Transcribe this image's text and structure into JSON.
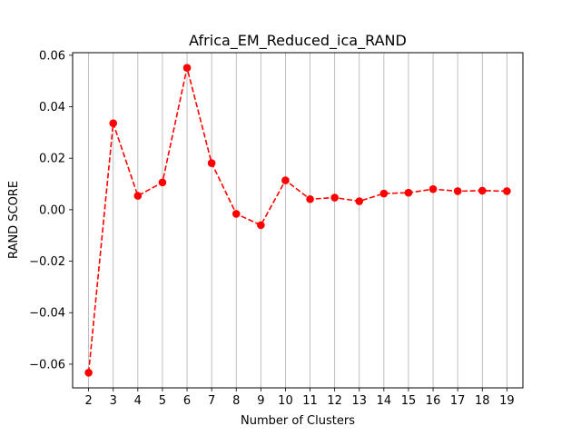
{
  "chart_data": {
    "type": "line",
    "title": "Africa_EM_Reduced_ica_RAND",
    "xlabel": "Number of Clusters",
    "ylabel": "RAND SCORE",
    "x": [
      2,
      3,
      4,
      5,
      6,
      7,
      8,
      9,
      10,
      11,
      12,
      13,
      14,
      15,
      16,
      17,
      18,
      19
    ],
    "series": [
      {
        "values": [
          -0.0633,
          0.0336,
          0.0054,
          0.0106,
          0.0551,
          0.0181,
          -0.0016,
          -0.006,
          0.0114,
          0.0041,
          0.0047,
          0.0033,
          0.0063,
          0.0066,
          0.008,
          0.0072,
          0.0074,
          0.0072
        ],
        "color": "#ff0000",
        "line_style": "dashed",
        "marker": "circle"
      }
    ],
    "xlim": [
      1.35,
      19.65
    ],
    "ylim": [
      -0.0692,
      0.061
    ],
    "xticks": [
      "2",
      "3",
      "4",
      "5",
      "6",
      "7",
      "8",
      "9",
      "10",
      "11",
      "12",
      "13",
      "14",
      "15",
      "16",
      "17",
      "18",
      "19"
    ],
    "yticks": [
      "0.06",
      "0.04",
      "0.02",
      "0.00",
      "−0.02",
      "−0.04",
      "−0.06"
    ],
    "ytick_values": [
      0.06,
      0.04,
      0.02,
      0.0,
      -0.02,
      -0.04,
      -0.06
    ],
    "grid": "x-only",
    "legend": "none"
  }
}
